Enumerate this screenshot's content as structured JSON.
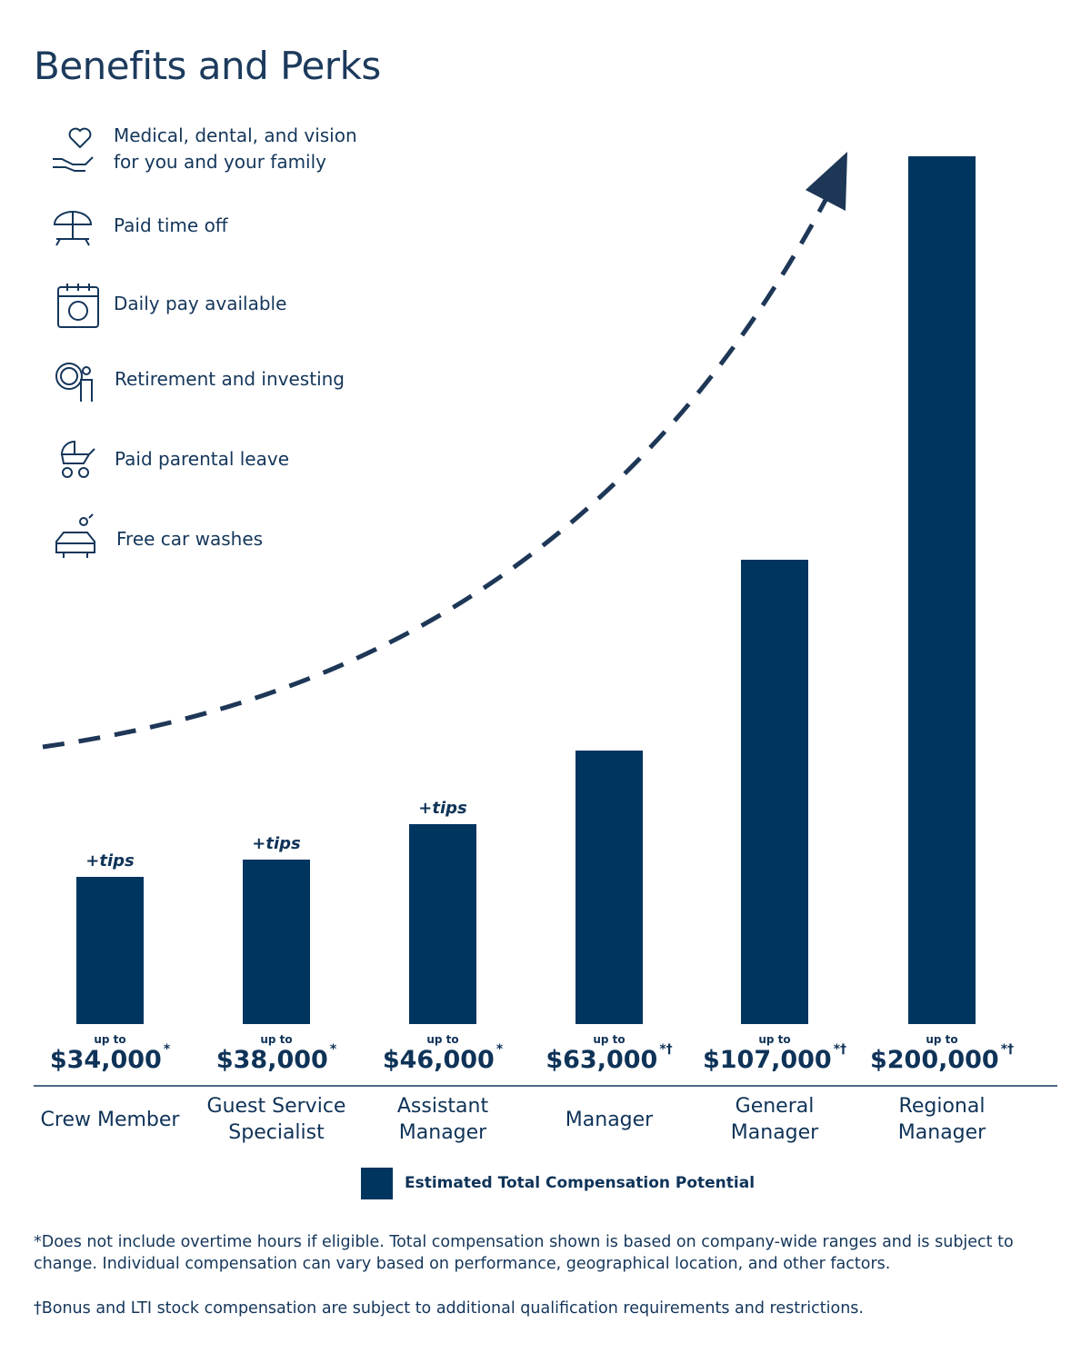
{
  "title": "Benefits and Perks",
  "benefits": [
    "Medical, dental, and vision for you and your family",
    "Paid time off",
    "Daily pay available",
    "Retirement and investing",
    "Paid parental leave",
    "Free car washes"
  ],
  "chart_data": {
    "type": "bar",
    "categories": [
      "Crew Member",
      "Guest Service Specialist",
      "Assistant Manager",
      "Manager",
      "General Manager",
      "Regional Manager"
    ],
    "series": [
      {
        "name": "Estimated Total Compensation Potential",
        "color": "#00355f",
        "values": [
          34000,
          38000,
          46000,
          63000,
          107000,
          200000
        ],
        "value_labels": [
          "$34,000",
          "$38,000",
          "$46,000",
          "$63,000",
          "$107,000",
          "$200,000"
        ]
      }
    ],
    "value_prefix": "up to",
    "notes": [
      "*",
      "*",
      "*",
      "*†",
      "*†",
      "*†"
    ],
    "annotations": [
      "+tips",
      "+tips",
      "+tips",
      null,
      null,
      null
    ]
  },
  "footnotes": [
    "*Does not include overtime hours if eligible. Total compensation shown is based on company-wide ranges and is subject to change. Individual compensation can vary based on performance, geographical location, and other factors.",
    "†Bonus and LTI stock compensation are subject to additional qualification requirements and restrictions."
  ]
}
